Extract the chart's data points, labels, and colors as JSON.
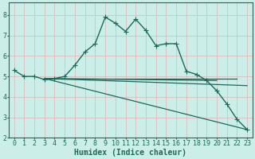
{
  "xlabel": "Humidex (Indice chaleur)",
  "bg_color": "#cceee8",
  "grid_color": "#ddbcbc",
  "line_color": "#1a6b5a",
  "xlim": [
    -0.5,
    23.5
  ],
  "ylim": [
    2,
    8.6
  ],
  "xticks": [
    0,
    1,
    2,
    3,
    4,
    5,
    6,
    7,
    8,
    9,
    10,
    11,
    12,
    13,
    14,
    15,
    16,
    17,
    18,
    19,
    20,
    21,
    22,
    23
  ],
  "yticks": [
    2,
    3,
    4,
    5,
    6,
    7,
    8
  ],
  "line1_x": [
    0,
    1,
    2,
    3,
    4,
    5,
    6,
    7,
    8,
    9,
    10,
    11,
    12,
    13,
    14,
    15,
    16,
    17,
    18,
    19,
    20,
    21,
    22,
    23
  ],
  "line1_y": [
    5.3,
    5.0,
    5.0,
    4.85,
    4.9,
    5.0,
    5.55,
    6.2,
    6.6,
    7.9,
    7.6,
    7.2,
    7.8,
    7.25,
    6.5,
    6.6,
    6.6,
    5.25,
    5.1,
    4.8,
    4.3,
    3.65,
    2.9,
    2.4
  ],
  "line2_x": [
    3,
    20
  ],
  "line2_y": [
    4.9,
    4.8
  ],
  "line3_x": [
    3,
    22
  ],
  "line3_y": [
    4.9,
    4.9
  ],
  "line4_x": [
    3,
    23
  ],
  "line4_y": [
    4.9,
    4.55
  ],
  "line5_x": [
    3,
    23
  ],
  "line5_y": [
    4.9,
    2.4
  ],
  "font_size_label": 7,
  "font_size_tick": 6
}
